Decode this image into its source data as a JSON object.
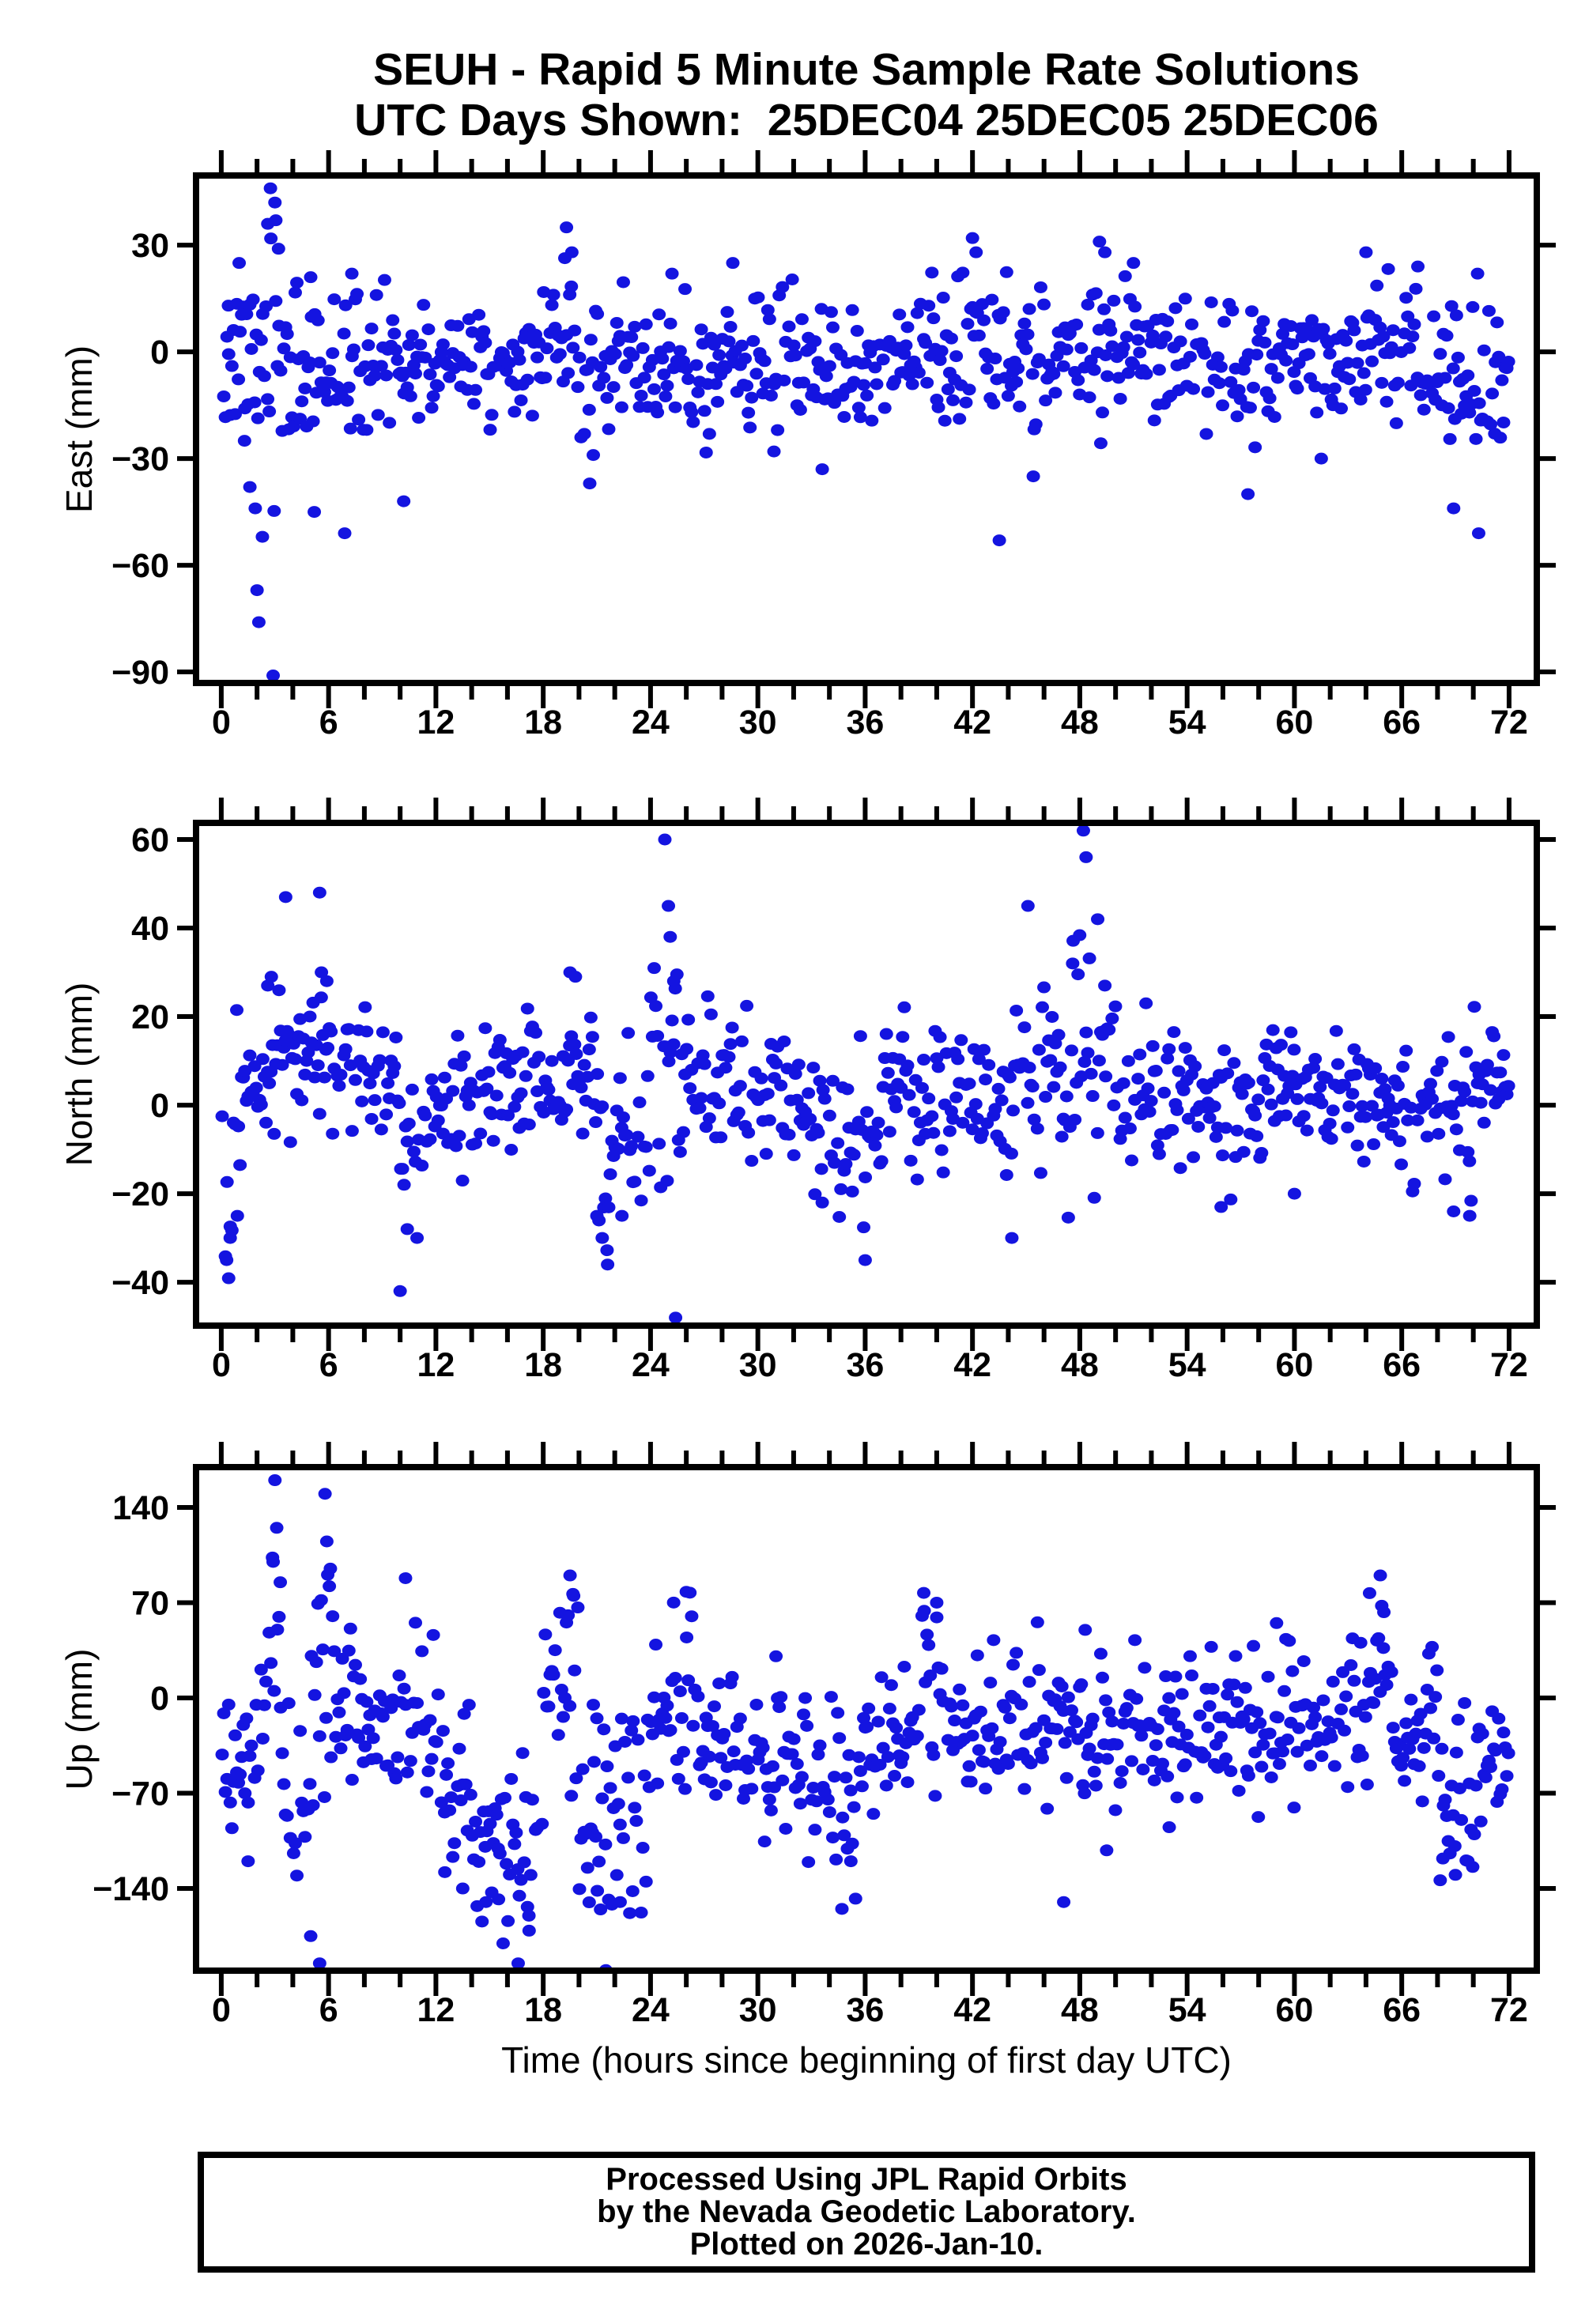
{
  "title": {
    "line1": "SEUH - Rapid 5 Minute Sample Rate Solutions",
    "line2": "UTC Days Shown:  25DEC04 25DEC05 25DEC06"
  },
  "footer": {
    "lines": [
      "Processed Using JPL Rapid Orbits",
      "by the Nevada Geodetic Laboratory.",
      "Plotted on 2026-Jan-10."
    ]
  },
  "chart_data": {
    "type": "scatter",
    "title": "SEUH - Rapid 5 Minute Sample Rate Solutions",
    "subtitle": "UTC Days Shown:  25DEC04 25DEC05 25DEC06",
    "legend": "none",
    "grid": false,
    "marker": {
      "color": "#1414e0",
      "rx": 8.5,
      "ry": 7.5
    },
    "frame_color": "#000000",
    "xaxis": {
      "label": "Time (hours since beginning of first day UTC)",
      "lim": [
        -1.41,
        73.55
      ],
      "major_ticks": [
        0,
        6,
        12,
        18,
        24,
        30,
        36,
        42,
        48,
        54,
        60,
        66,
        72
      ],
      "minor_step": 2
    },
    "panels": [
      {
        "id": "east",
        "ylabel": "East (mm)",
        "ylim": [
          -93.1,
          49.6
        ],
        "yticks": [
          30,
          0,
          -30,
          -60,
          -90
        ],
        "seed": 7,
        "dt": 0.0908,
        "dropout": 0.08,
        "segments": [
          [
            0,
            1,
            -4,
            9
          ],
          [
            1,
            2.2,
            -8,
            16
          ],
          [
            2.2,
            3.3,
            -2,
            20
          ],
          [
            3.3,
            4,
            -4,
            12
          ],
          [
            4,
            8,
            -4,
            11
          ],
          [
            8,
            12,
            -3,
            9
          ],
          [
            12,
            18,
            -3,
            9
          ],
          [
            18,
            19.8,
            2,
            12
          ],
          [
            19.8,
            21.2,
            -4,
            12
          ],
          [
            21.2,
            26,
            -2,
            10
          ],
          [
            26,
            30,
            -4,
            9
          ],
          [
            30,
            33,
            -2,
            9
          ],
          [
            33,
            36,
            -5,
            9
          ],
          [
            36,
            42,
            -2,
            9
          ],
          [
            42,
            46,
            0,
            11
          ],
          [
            46,
            48,
            -5,
            9
          ],
          [
            48,
            50,
            0,
            10
          ],
          [
            50,
            52,
            -2,
            9
          ],
          [
            52,
            57,
            -2,
            9
          ],
          [
            57,
            59,
            -4,
            10
          ],
          [
            59,
            66,
            -1,
            9
          ],
          [
            66,
            68.5,
            -2,
            9
          ],
          [
            68.5,
            71,
            -5,
            10
          ],
          [
            71,
            72.1,
            -4,
            8
          ]
        ],
        "outliers": [
          [
            0.4,
            13
          ],
          [
            1.0,
            25
          ],
          [
            1.3,
            -25
          ],
          [
            1.6,
            -38
          ],
          [
            1.9,
            -44
          ],
          [
            2.0,
            -67
          ],
          [
            2.1,
            -76
          ],
          [
            2.3,
            -52
          ],
          [
            2.6,
            36
          ],
          [
            2.75,
            46
          ],
          [
            2.9,
            -91
          ],
          [
            3.0,
            42
          ],
          [
            3.05,
            37
          ],
          [
            3.2,
            29
          ],
          [
            5.0,
            21
          ],
          [
            5.2,
            -45
          ],
          [
            6.9,
            -51
          ],
          [
            7.3,
            22
          ],
          [
            10.2,
            -42
          ],
          [
            19.3,
            35
          ],
          [
            19.6,
            28
          ],
          [
            20.6,
            -37
          ],
          [
            20.8,
            -29
          ],
          [
            25.2,
            22
          ],
          [
            28.6,
            25
          ],
          [
            30.9,
            -28
          ],
          [
            33.6,
            -33
          ],
          [
            42.0,
            32
          ],
          [
            42.2,
            28
          ],
          [
            43.5,
            -53
          ],
          [
            45.4,
            -35
          ],
          [
            49.1,
            31
          ],
          [
            49.4,
            28
          ],
          [
            51.0,
            25
          ],
          [
            57.4,
            -40
          ],
          [
            61.5,
            -30
          ],
          [
            64.0,
            28
          ],
          [
            66.9,
            24
          ],
          [
            68.9,
            -44
          ],
          [
            70.3,
            -51
          ],
          [
            71.2,
            -23
          ]
        ]
      },
      {
        "id": "north",
        "ylabel": "North (mm)",
        "ylim": [
          -49.8,
          63.75
        ],
        "yticks": [
          60,
          40,
          20,
          0,
          -20,
          -40
        ],
        "seed": 13,
        "dt": 0.0908,
        "dropout": 0.08,
        "segments": [
          [
            0,
            0.8,
            -18,
            12
          ],
          [
            0.8,
            2,
            -2,
            10
          ],
          [
            2,
            3,
            4,
            10
          ],
          [
            3,
            7,
            9,
            8
          ],
          [
            7,
            10,
            8,
            7
          ],
          [
            10,
            12,
            -3,
            10
          ],
          [
            12,
            15,
            2,
            8
          ],
          [
            15,
            18,
            5,
            8
          ],
          [
            18,
            21,
            6,
            9
          ],
          [
            21,
            24,
            -6,
            10
          ],
          [
            24,
            26,
            3,
            14
          ],
          [
            26,
            30,
            6,
            8
          ],
          [
            30,
            33,
            2,
            8
          ],
          [
            33,
            37,
            -6,
            8
          ],
          [
            37,
            40,
            2,
            8
          ],
          [
            40,
            44,
            2,
            8
          ],
          [
            44,
            47,
            6,
            9
          ],
          [
            47,
            50,
            7,
            12
          ],
          [
            50,
            54,
            1,
            8
          ],
          [
            54,
            58,
            0,
            8
          ],
          [
            58,
            62,
            4,
            7
          ],
          [
            62,
            66,
            3,
            7
          ],
          [
            66,
            70,
            0,
            8
          ],
          [
            70,
            72.1,
            6,
            6
          ]
        ],
        "outliers": [
          [
            0.3,
            -35
          ],
          [
            0.5,
            -30
          ],
          [
            0.9,
            -25
          ],
          [
            2.6,
            27
          ],
          [
            2.8,
            29
          ],
          [
            3.6,
            47
          ],
          [
            5.5,
            48
          ],
          [
            5.6,
            30
          ],
          [
            5.9,
            28
          ],
          [
            10.0,
            -42
          ],
          [
            10.4,
            -28
          ],
          [
            19.5,
            30
          ],
          [
            19.8,
            29
          ],
          [
            21.0,
            -25
          ],
          [
            21.3,
            -30
          ],
          [
            21.6,
            -36
          ],
          [
            22.4,
            -25
          ],
          [
            24.8,
            60
          ],
          [
            25.0,
            45
          ],
          [
            25.1,
            38
          ],
          [
            25.3,
            28
          ],
          [
            25.4,
            -48
          ],
          [
            33.6,
            -22
          ],
          [
            36.0,
            -35
          ],
          [
            44.2,
            -30
          ],
          [
            45.1,
            45
          ],
          [
            47.6,
            32
          ],
          [
            48.2,
            62
          ],
          [
            48.35,
            56
          ],
          [
            49.0,
            42
          ],
          [
            49.4,
            27
          ],
          [
            51.7,
            23
          ],
          [
            55.9,
            -23
          ],
          [
            60.0,
            -20
          ],
          [
            68.9,
            -24
          ],
          [
            69.8,
            -25
          ]
        ]
      },
      {
        "id": "up",
        "ylabel": "Up (mm)",
        "ylim": [
          -200.4,
          169.6
        ],
        "yticks": [
          140,
          70,
          0,
          -70,
          -140
        ],
        "seed": 21,
        "dt": 0.0908,
        "dropout": 0.08,
        "segments": [
          [
            0,
            1.2,
            -35,
            25
          ],
          [
            1.2,
            2.2,
            -55,
            35
          ],
          [
            2.2,
            3.4,
            55,
            50
          ],
          [
            3.4,
            5,
            -60,
            45
          ],
          [
            5,
            6.4,
            20,
            65
          ],
          [
            6.4,
            9,
            -15,
            25
          ],
          [
            9,
            12,
            -20,
            30
          ],
          [
            12,
            14,
            -60,
            30
          ],
          [
            14,
            18,
            -105,
            35
          ],
          [
            18,
            20,
            20,
            40
          ],
          [
            20,
            24,
            -85,
            50
          ],
          [
            24,
            27,
            0,
            38
          ],
          [
            27,
            30,
            -35,
            25
          ],
          [
            30,
            33,
            -45,
            28
          ],
          [
            33,
            36,
            -65,
            35
          ],
          [
            36,
            39,
            -30,
            25
          ],
          [
            39,
            41,
            5,
            35
          ],
          [
            41,
            44,
            -25,
            25
          ],
          [
            44,
            48,
            -20,
            28
          ],
          [
            48,
            50,
            -35,
            35
          ],
          [
            50,
            53,
            -25,
            25
          ],
          [
            53,
            56,
            -30,
            25
          ],
          [
            56,
            60,
            -20,
            25
          ],
          [
            60,
            63,
            -15,
            22
          ],
          [
            63,
            65.5,
            0,
            35
          ],
          [
            65.5,
            68,
            -30,
            25
          ],
          [
            68,
            70.5,
            -75,
            28
          ],
          [
            70.5,
            72.1,
            -45,
            22
          ]
        ],
        "outliers": [
          [
            1.5,
            -120
          ],
          [
            2.9,
            100
          ],
          [
            3.0,
            160
          ],
          [
            3.1,
            125
          ],
          [
            3.3,
            85
          ],
          [
            5.0,
            -175
          ],
          [
            5.5,
            -195
          ],
          [
            5.8,
            150
          ],
          [
            5.9,
            115
          ],
          [
            6.1,
            95
          ],
          [
            10.3,
            88
          ],
          [
            12.5,
            -128
          ],
          [
            13.5,
            -140
          ],
          [
            14.8,
            -150
          ],
          [
            15.5,
            -148
          ],
          [
            16.6,
            -195
          ],
          [
            17.2,
            -160
          ],
          [
            19.5,
            90
          ],
          [
            19.7,
            75
          ],
          [
            20.8,
            -5
          ],
          [
            21.0,
            -15
          ],
          [
            21.5,
            -200
          ],
          [
            22.3,
            -150
          ],
          [
            23.0,
            -142
          ],
          [
            26.0,
            78
          ],
          [
            26.3,
            60
          ],
          [
            34.7,
            -155
          ],
          [
            35.2,
            -120
          ],
          [
            39.3,
            64
          ],
          [
            40.0,
            70
          ],
          [
            47.1,
            -150
          ],
          [
            48.3,
            50
          ],
          [
            49.5,
            -112
          ],
          [
            53.0,
            -95
          ],
          [
            59.0,
            55
          ],
          [
            64.2,
            77
          ],
          [
            64.8,
            90
          ],
          [
            65.0,
            63
          ],
          [
            68.3,
            -118
          ],
          [
            69.0,
            -130
          ]
        ]
      }
    ]
  }
}
